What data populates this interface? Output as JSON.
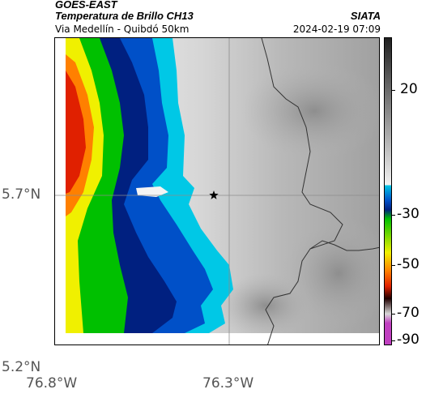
{
  "header": {
    "agency": "GOES-EAST",
    "product": "Temperatura de Brillo CH13",
    "region": "Via Medellín - Quibdó 50km",
    "org": "SIATA",
    "timestamp": "2024-02-19 07:09"
  },
  "map": {
    "lat_ticks": [
      "5.7°N",
      "5.2°N"
    ],
    "lon_ticks": [
      "76.8°W",
      "76.3°W"
    ],
    "marker_icon": "star-icon",
    "gridline_color": "#8c8c8c",
    "border_color": "#333333"
  },
  "colorbar": {
    "labels": [
      "20",
      "-30",
      "-50",
      "-70",
      "-90"
    ],
    "colors": {
      "warm_top": "#202020",
      "warm_bottom": "#f2f2f2",
      "cyan": "#00c8e6",
      "blue": "#0050c8",
      "navy": "#002080",
      "green": "#00c000",
      "yellow": "#f0f000",
      "orange": "#ff8000",
      "red": "#e02000",
      "dark": "#200000",
      "magenta": "#c040c0"
    }
  }
}
